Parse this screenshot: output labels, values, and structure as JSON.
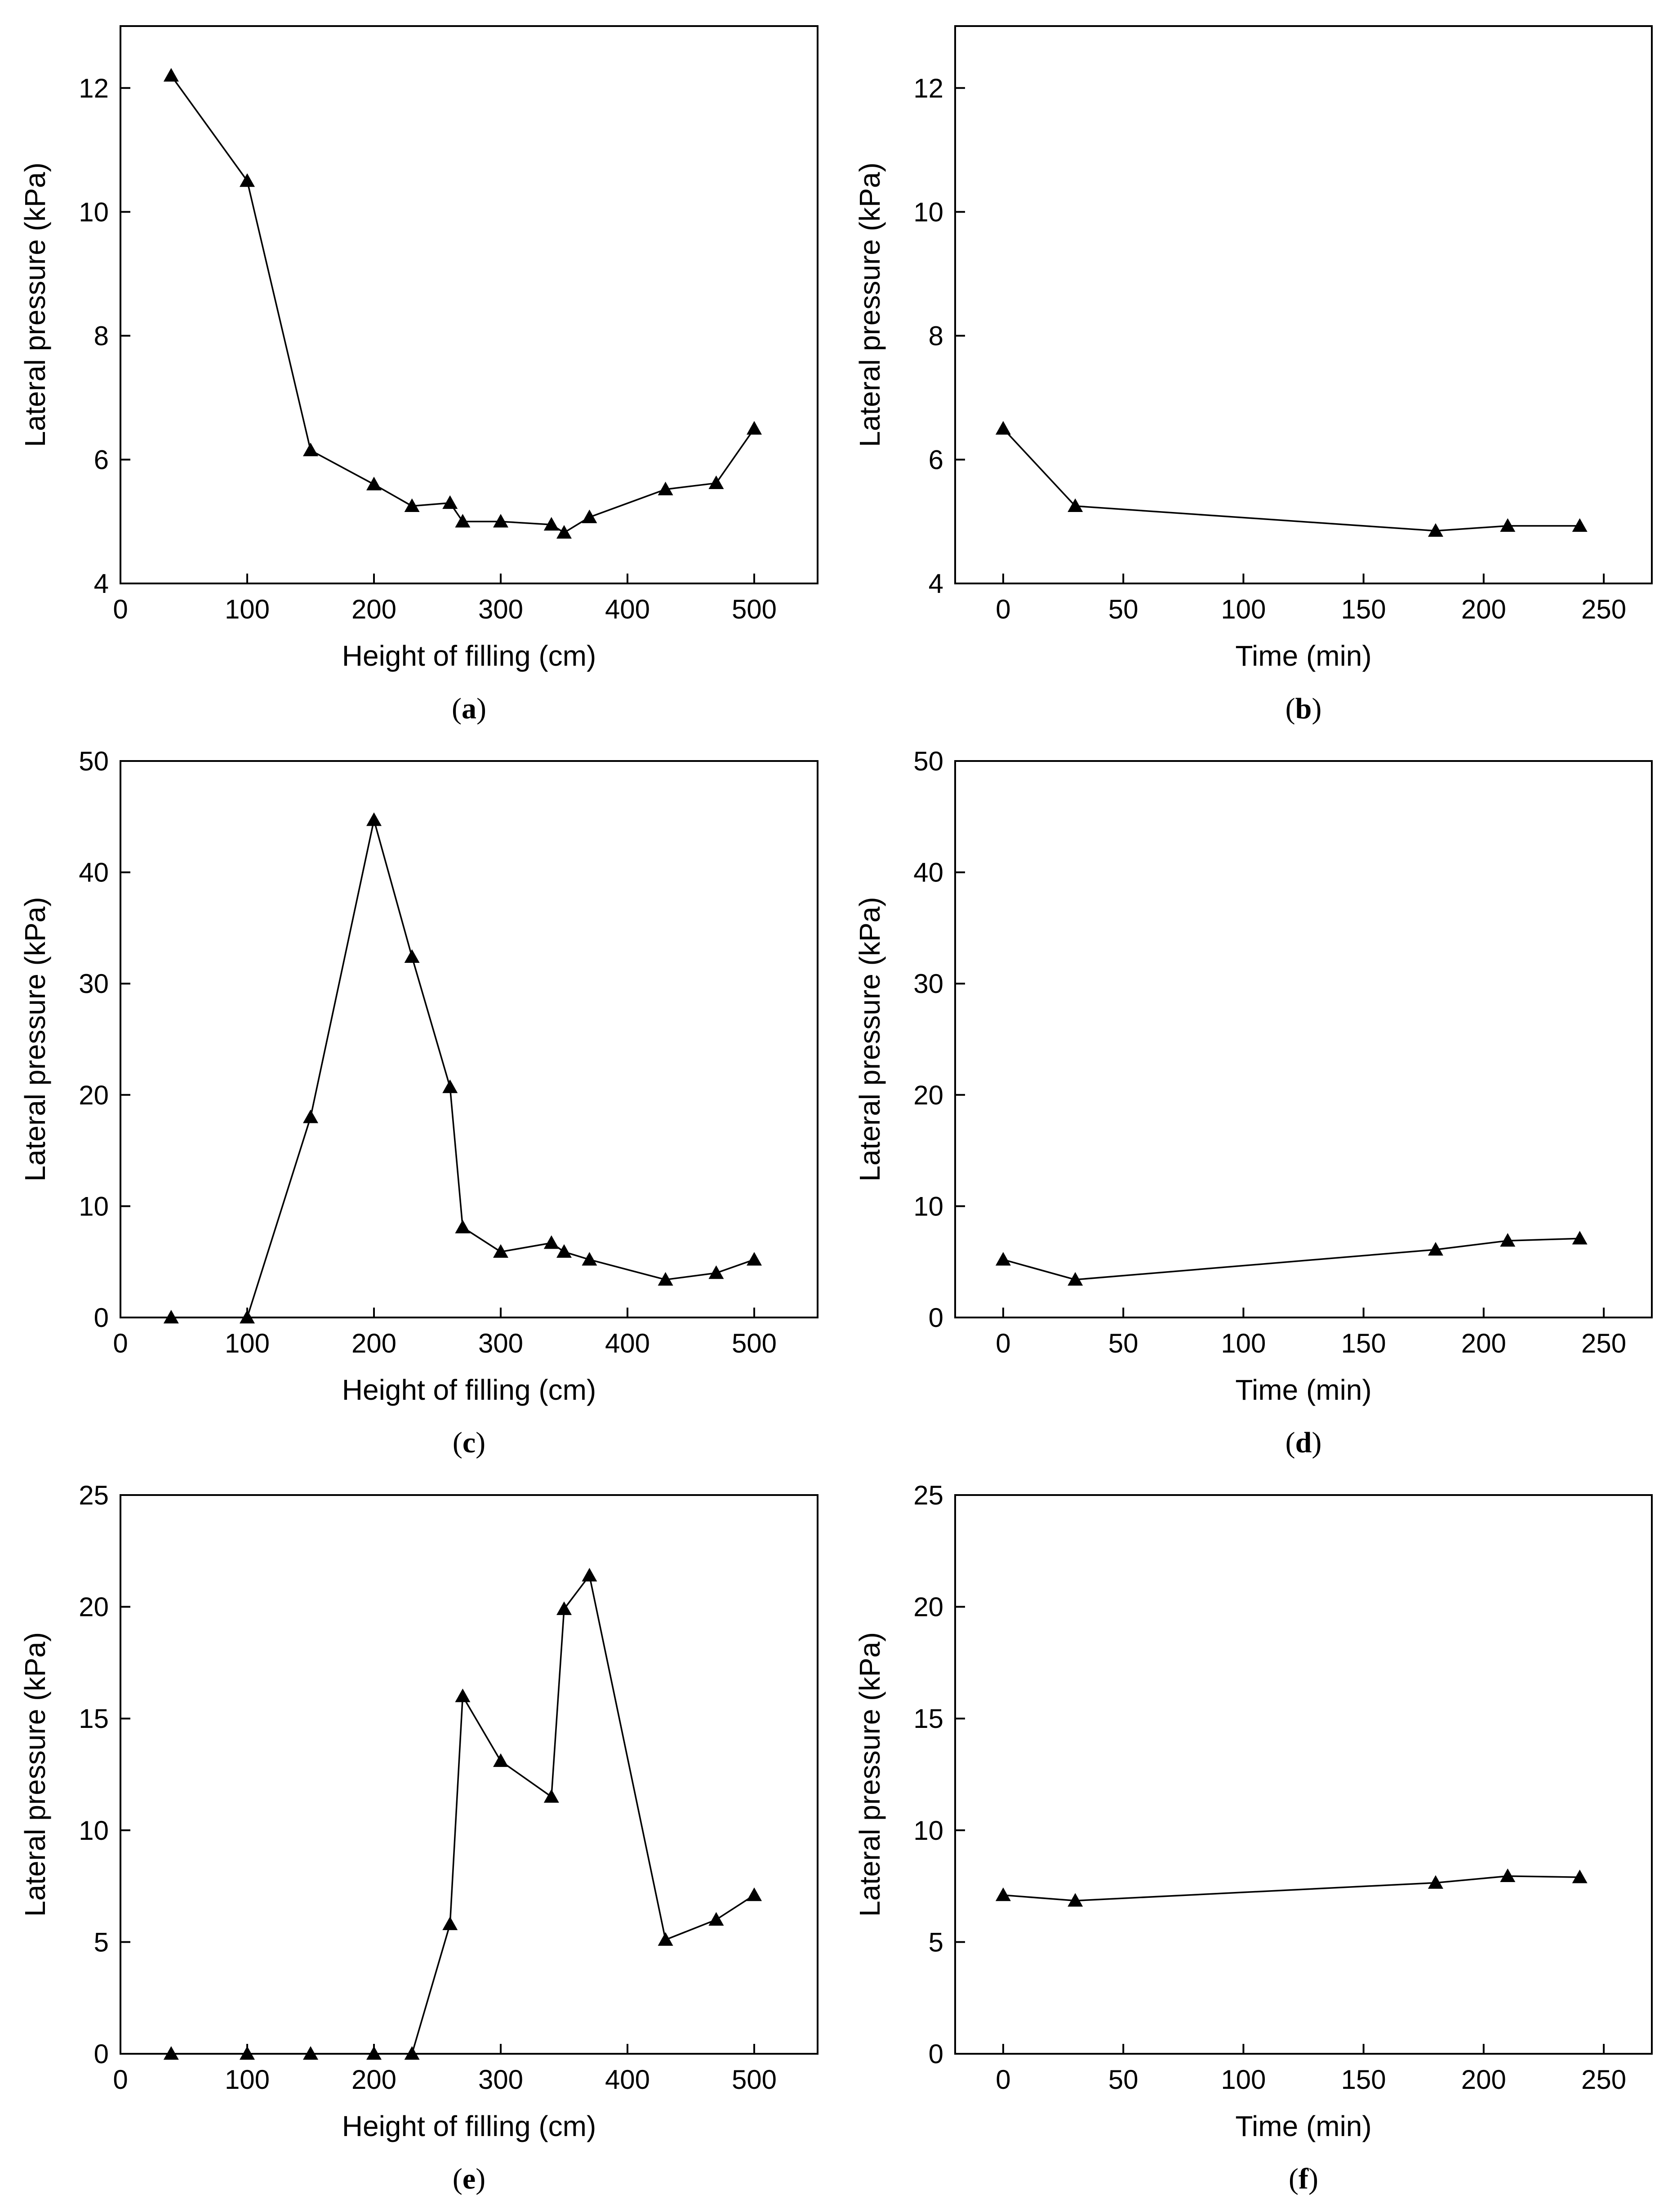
{
  "chart_data": [
    {
      "id": "a",
      "type": "line",
      "caption_letter": "a",
      "xlabel": "Height of filling (cm)",
      "ylabel": "Lateral pressure (kPa)",
      "xlim": [
        0,
        550
      ],
      "ylim": [
        4,
        13
      ],
      "xticks": [
        0,
        100,
        200,
        300,
        400,
        500
      ],
      "yticks": [
        4,
        6,
        8,
        10,
        12
      ],
      "marker": "triangle",
      "series": [
        {
          "name": "lateral pressure",
          "x": [
            40,
            100,
            150,
            200,
            230,
            260,
            270,
            300,
            340,
            350,
            370,
            430,
            470,
            500
          ],
          "y": [
            12.2,
            10.5,
            6.15,
            5.6,
            5.25,
            5.3,
            5.0,
            5.0,
            4.95,
            4.82,
            5.07,
            5.52,
            5.62,
            6.5
          ]
        }
      ]
    },
    {
      "id": "b",
      "type": "line",
      "caption_letter": "b",
      "xlabel": "Time (min)",
      "ylabel": "Lateral pressure (kPa)",
      "xlim": [
        -20,
        270
      ],
      "ylim": [
        4,
        13
      ],
      "xticks": [
        0,
        50,
        100,
        150,
        200,
        250
      ],
      "yticks": [
        4,
        6,
        8,
        10,
        12
      ],
      "marker": "triangle",
      "series": [
        {
          "name": "lateral pressure",
          "x": [
            0,
            30,
            180,
            210,
            240
          ],
          "y": [
            6.5,
            5.25,
            4.85,
            4.93,
            4.93
          ]
        }
      ]
    },
    {
      "id": "c",
      "type": "line",
      "caption_letter": "c",
      "xlabel": "Height of filling (cm)",
      "ylabel": "Lateral pressure (kPa)",
      "xlim": [
        0,
        550
      ],
      "ylim": [
        0,
        50
      ],
      "xticks": [
        0,
        100,
        200,
        300,
        400,
        500
      ],
      "yticks": [
        0,
        10,
        20,
        30,
        40,
        50
      ],
      "marker": "triangle",
      "series": [
        {
          "name": "lateral pressure",
          "x": [
            40,
            100,
            150,
            200,
            230,
            260,
            270,
            300,
            340,
            350,
            370,
            430,
            470,
            500
          ],
          "y": [
            0,
            0,
            18,
            44.7,
            32.4,
            20.7,
            8.1,
            5.9,
            6.7,
            5.9,
            5.2,
            3.4,
            4.0,
            5.2
          ]
        }
      ]
    },
    {
      "id": "d",
      "type": "line",
      "caption_letter": "d",
      "xlabel": "Time (min)",
      "ylabel": "Lateral pressure (kPa)",
      "xlim": [
        -20,
        270
      ],
      "ylim": [
        0,
        50
      ],
      "xticks": [
        0,
        50,
        100,
        150,
        200,
        250
      ],
      "yticks": [
        0,
        10,
        20,
        30,
        40,
        50
      ],
      "marker": "triangle",
      "series": [
        {
          "name": "lateral pressure",
          "x": [
            0,
            30,
            180,
            210,
            240
          ],
          "y": [
            5.2,
            3.4,
            6.1,
            6.9,
            7.1
          ]
        }
      ]
    },
    {
      "id": "e",
      "type": "line",
      "caption_letter": "e",
      "xlabel": "Height of filling (cm)",
      "ylabel": "Lateral pressure (kPa)",
      "xlim": [
        0,
        550
      ],
      "ylim": [
        0,
        25
      ],
      "xticks": [
        0,
        100,
        200,
        300,
        400,
        500
      ],
      "yticks": [
        0,
        5,
        10,
        15,
        20,
        25
      ],
      "marker": "triangle",
      "series": [
        {
          "name": "lateral pressure",
          "x": [
            40,
            100,
            150,
            200,
            230,
            260,
            270,
            300,
            340,
            350,
            370,
            430,
            470,
            500
          ],
          "y": [
            0,
            0,
            0,
            0,
            0,
            5.8,
            16.0,
            13.1,
            11.5,
            19.9,
            21.4,
            5.1,
            6.0,
            7.1
          ]
        }
      ]
    },
    {
      "id": "f",
      "type": "line",
      "caption_letter": "f",
      "xlabel": "Time (min)",
      "ylabel": "Lateral pressure (kPa)",
      "xlim": [
        -20,
        270
      ],
      "ylim": [
        0,
        25
      ],
      "xticks": [
        0,
        50,
        100,
        150,
        200,
        250
      ],
      "yticks": [
        0,
        5,
        10,
        15,
        20,
        25
      ],
      "marker": "triangle",
      "series": [
        {
          "name": "lateral pressure",
          "x": [
            0,
            30,
            180,
            210,
            240
          ],
          "y": [
            7.1,
            6.85,
            7.65,
            7.95,
            7.9
          ]
        }
      ]
    }
  ]
}
